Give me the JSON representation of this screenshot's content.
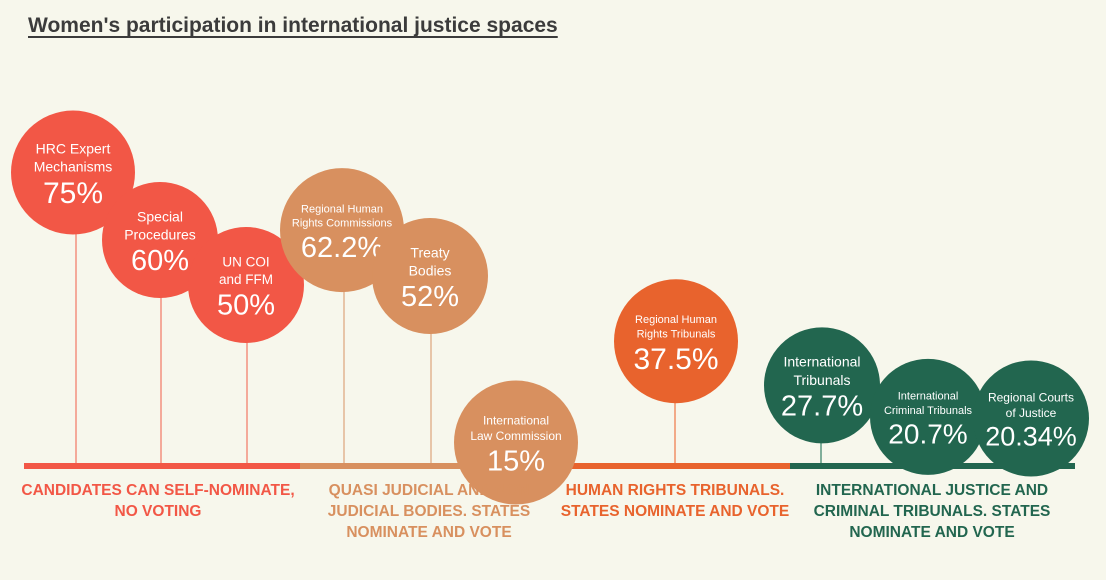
{
  "title": "Women's participation in international justice spaces",
  "chart_data": {
    "type": "bubble-lollipop",
    "title": "Women's participation in international justice spaces",
    "value_unit": "%",
    "categories": [
      {
        "label": "CANDIDATES CAN SELF-NOMINATE, NO VOTING",
        "color": "#f25746"
      },
      {
        "label": "QUASI JUDICIAL AND NON JUDICIAL BODIES. STATES NOMINATE AND VOTE",
        "color": "#d8905f"
      },
      {
        "label": "HUMAN RIGHTS TRIBUNALS. STATES NOMINATE AND VOTE",
        "color": "#e8632d"
      },
      {
        "label": "INTERNATIONAL JUSTICE AND CRIMINAL TRIBUNALS. STATES NOMINATE AND VOTE",
        "color": "#22664f"
      }
    ],
    "items": [
      {
        "name": "HRC Expert Mechanisms",
        "value": 75,
        "display": "75%",
        "category": 0
      },
      {
        "name": "Special Procedures",
        "value": 60,
        "display": "60%",
        "category": 0
      },
      {
        "name": "UN COI and FFM",
        "value": 50,
        "display": "50%",
        "category": 0
      },
      {
        "name": "Regional Human Rights Commissions",
        "value": 62.2,
        "display": "62.2%",
        "category": 1
      },
      {
        "name": "Treaty Bodies",
        "value": 52,
        "display": "52%",
        "category": 1
      },
      {
        "name": "International Law Commission",
        "value": 15,
        "display": "15%",
        "category": 1
      },
      {
        "name": "Regional Human Rights Tribunals",
        "value": 37.5,
        "display": "37.5%",
        "category": 2
      },
      {
        "name": "International Tribunals",
        "value": 27.7,
        "display": "27.7%",
        "category": 3
      },
      {
        "name": "International Criminal Tribunals",
        "value": 20.7,
        "display": "20.7%",
        "category": 3
      },
      {
        "name": "Regional Courts of Justice",
        "value": 20.34,
        "display": "20.34%",
        "category": 3
      }
    ]
  }
}
